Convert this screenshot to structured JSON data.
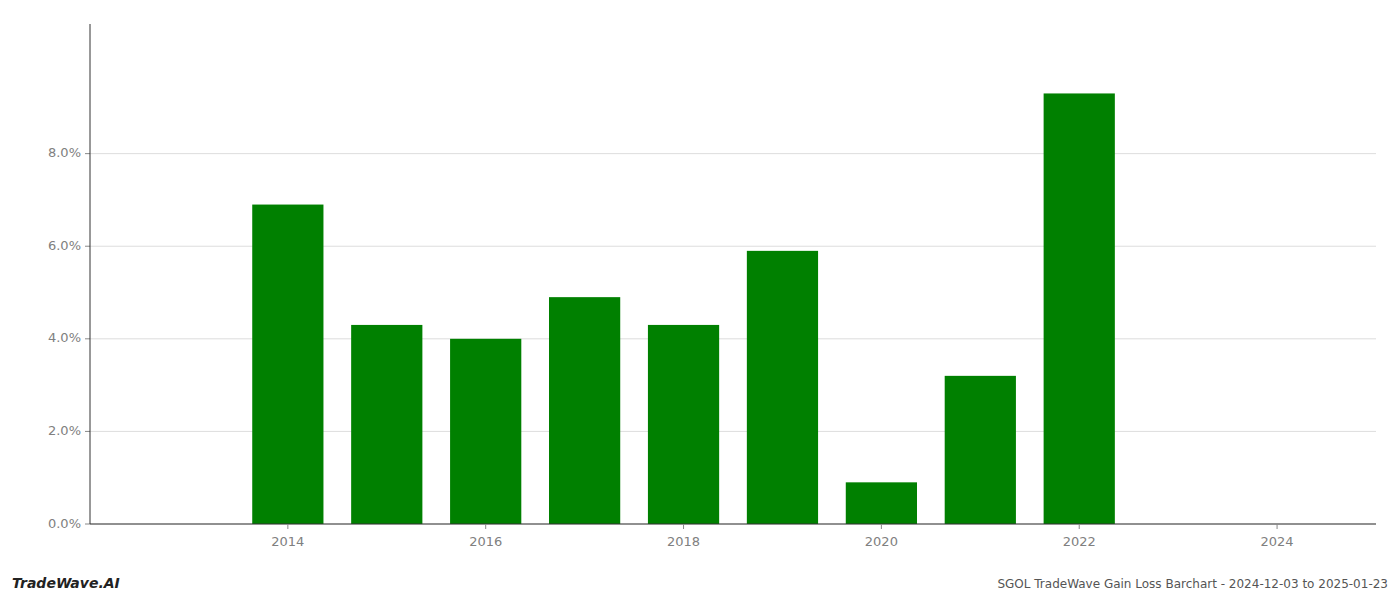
{
  "chart_data": {
    "type": "bar",
    "x": [
      2013,
      2014,
      2015,
      2016,
      2017,
      2018,
      2019,
      2020,
      2021,
      2022,
      2023,
      2024
    ],
    "values": [
      0.0,
      0.069,
      0.043,
      0.04,
      0.049,
      0.043,
      0.059,
      0.009,
      0.032,
      0.093,
      0.0,
      0.0
    ],
    "color": "#008000",
    "xlim": [
      2012,
      2025
    ],
    "xticks": [
      2014,
      2016,
      2018,
      2020,
      2022,
      2024
    ],
    "ylim": [
      0,
      0.108
    ],
    "yticks": [
      {
        "value": 0.0,
        "label": "0.0%"
      },
      {
        "value": 0.02,
        "label": "2.0%"
      },
      {
        "value": 0.04,
        "label": "4.0%"
      },
      {
        "value": 0.06,
        "label": "6.0%"
      },
      {
        "value": 0.08,
        "label": "8.0%"
      }
    ],
    "grid": true,
    "annotations": [
      "TradeWave.AI",
      "SGOL TradeWave Gain Loss Barchart - 2024-12-03 to 2025-01-23"
    ]
  }
}
